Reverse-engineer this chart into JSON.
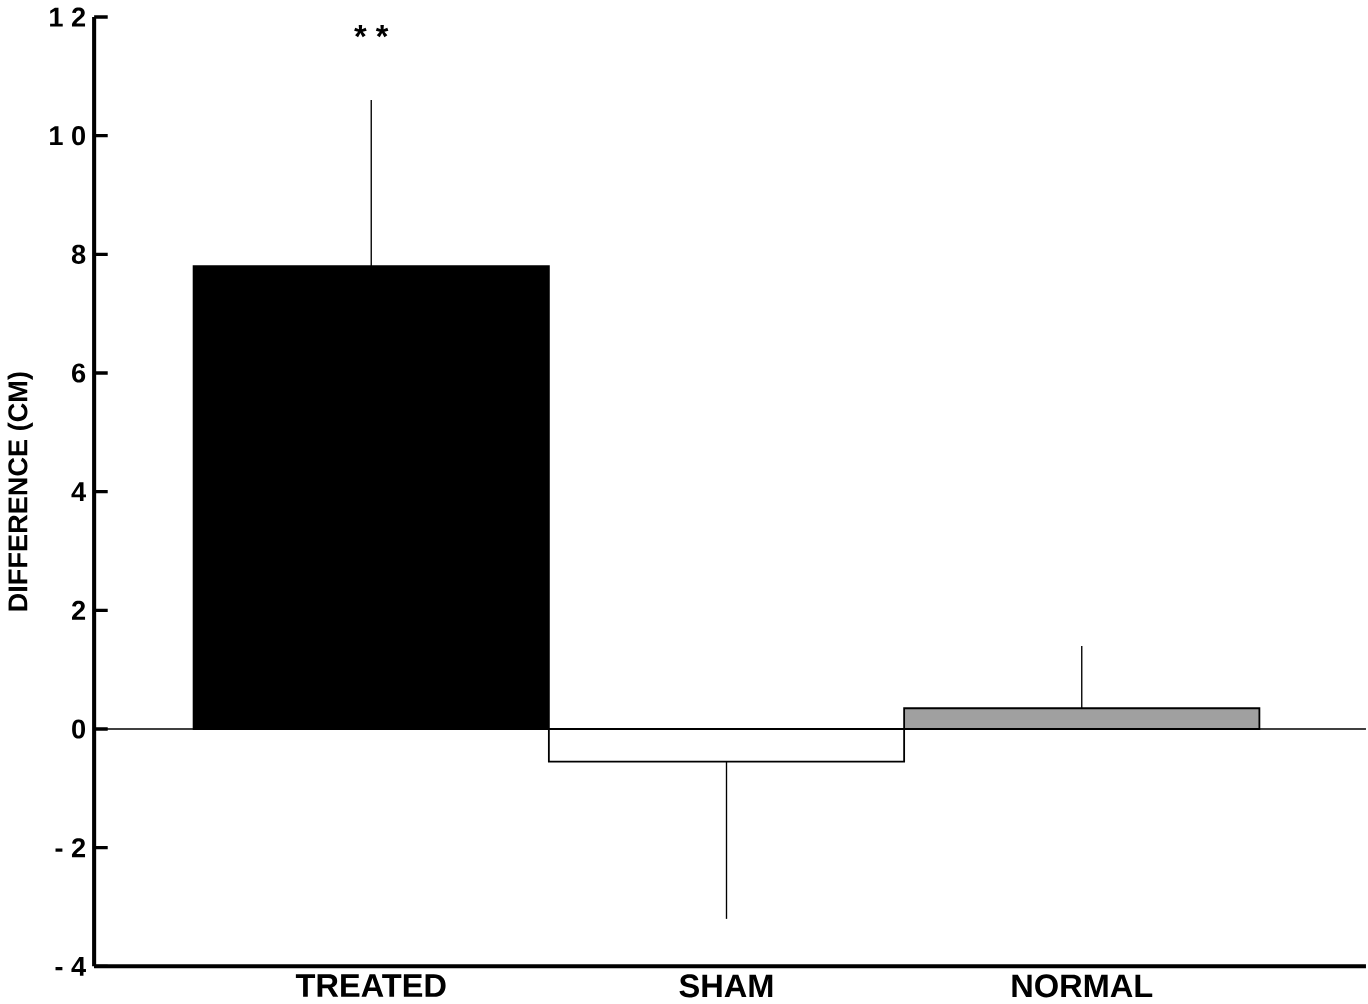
{
  "chart_data": {
    "type": "bar",
    "ylabel": "DIFFERENCE  (CM)",
    "categories": [
      "TREATED",
      "SHAM",
      "NORMAL"
    ],
    "values": [
      7.8,
      -0.55,
      0.35
    ],
    "colors": [
      "#000000",
      "#ffffff",
      "#a0a0a0"
    ],
    "errors": [
      [
        7.8,
        10.6
      ],
      [
        -3.2,
        -0.55
      ],
      [
        0.35,
        1.4
      ]
    ],
    "ylim": [
      -4,
      12
    ],
    "yticks": [
      {
        "value": -4,
        "label": "- 4"
      },
      {
        "value": -2,
        "label": "- 2"
      },
      0,
      2,
      4,
      6,
      8,
      {
        "value": 10,
        "label": "1 0"
      },
      {
        "value": 12,
        "label": "1 2"
      }
    ],
    "ref_lines": [
      {
        "axis": "y",
        "value": 0
      }
    ],
    "annotations": [
      "* *"
    ],
    "grid": false
  }
}
